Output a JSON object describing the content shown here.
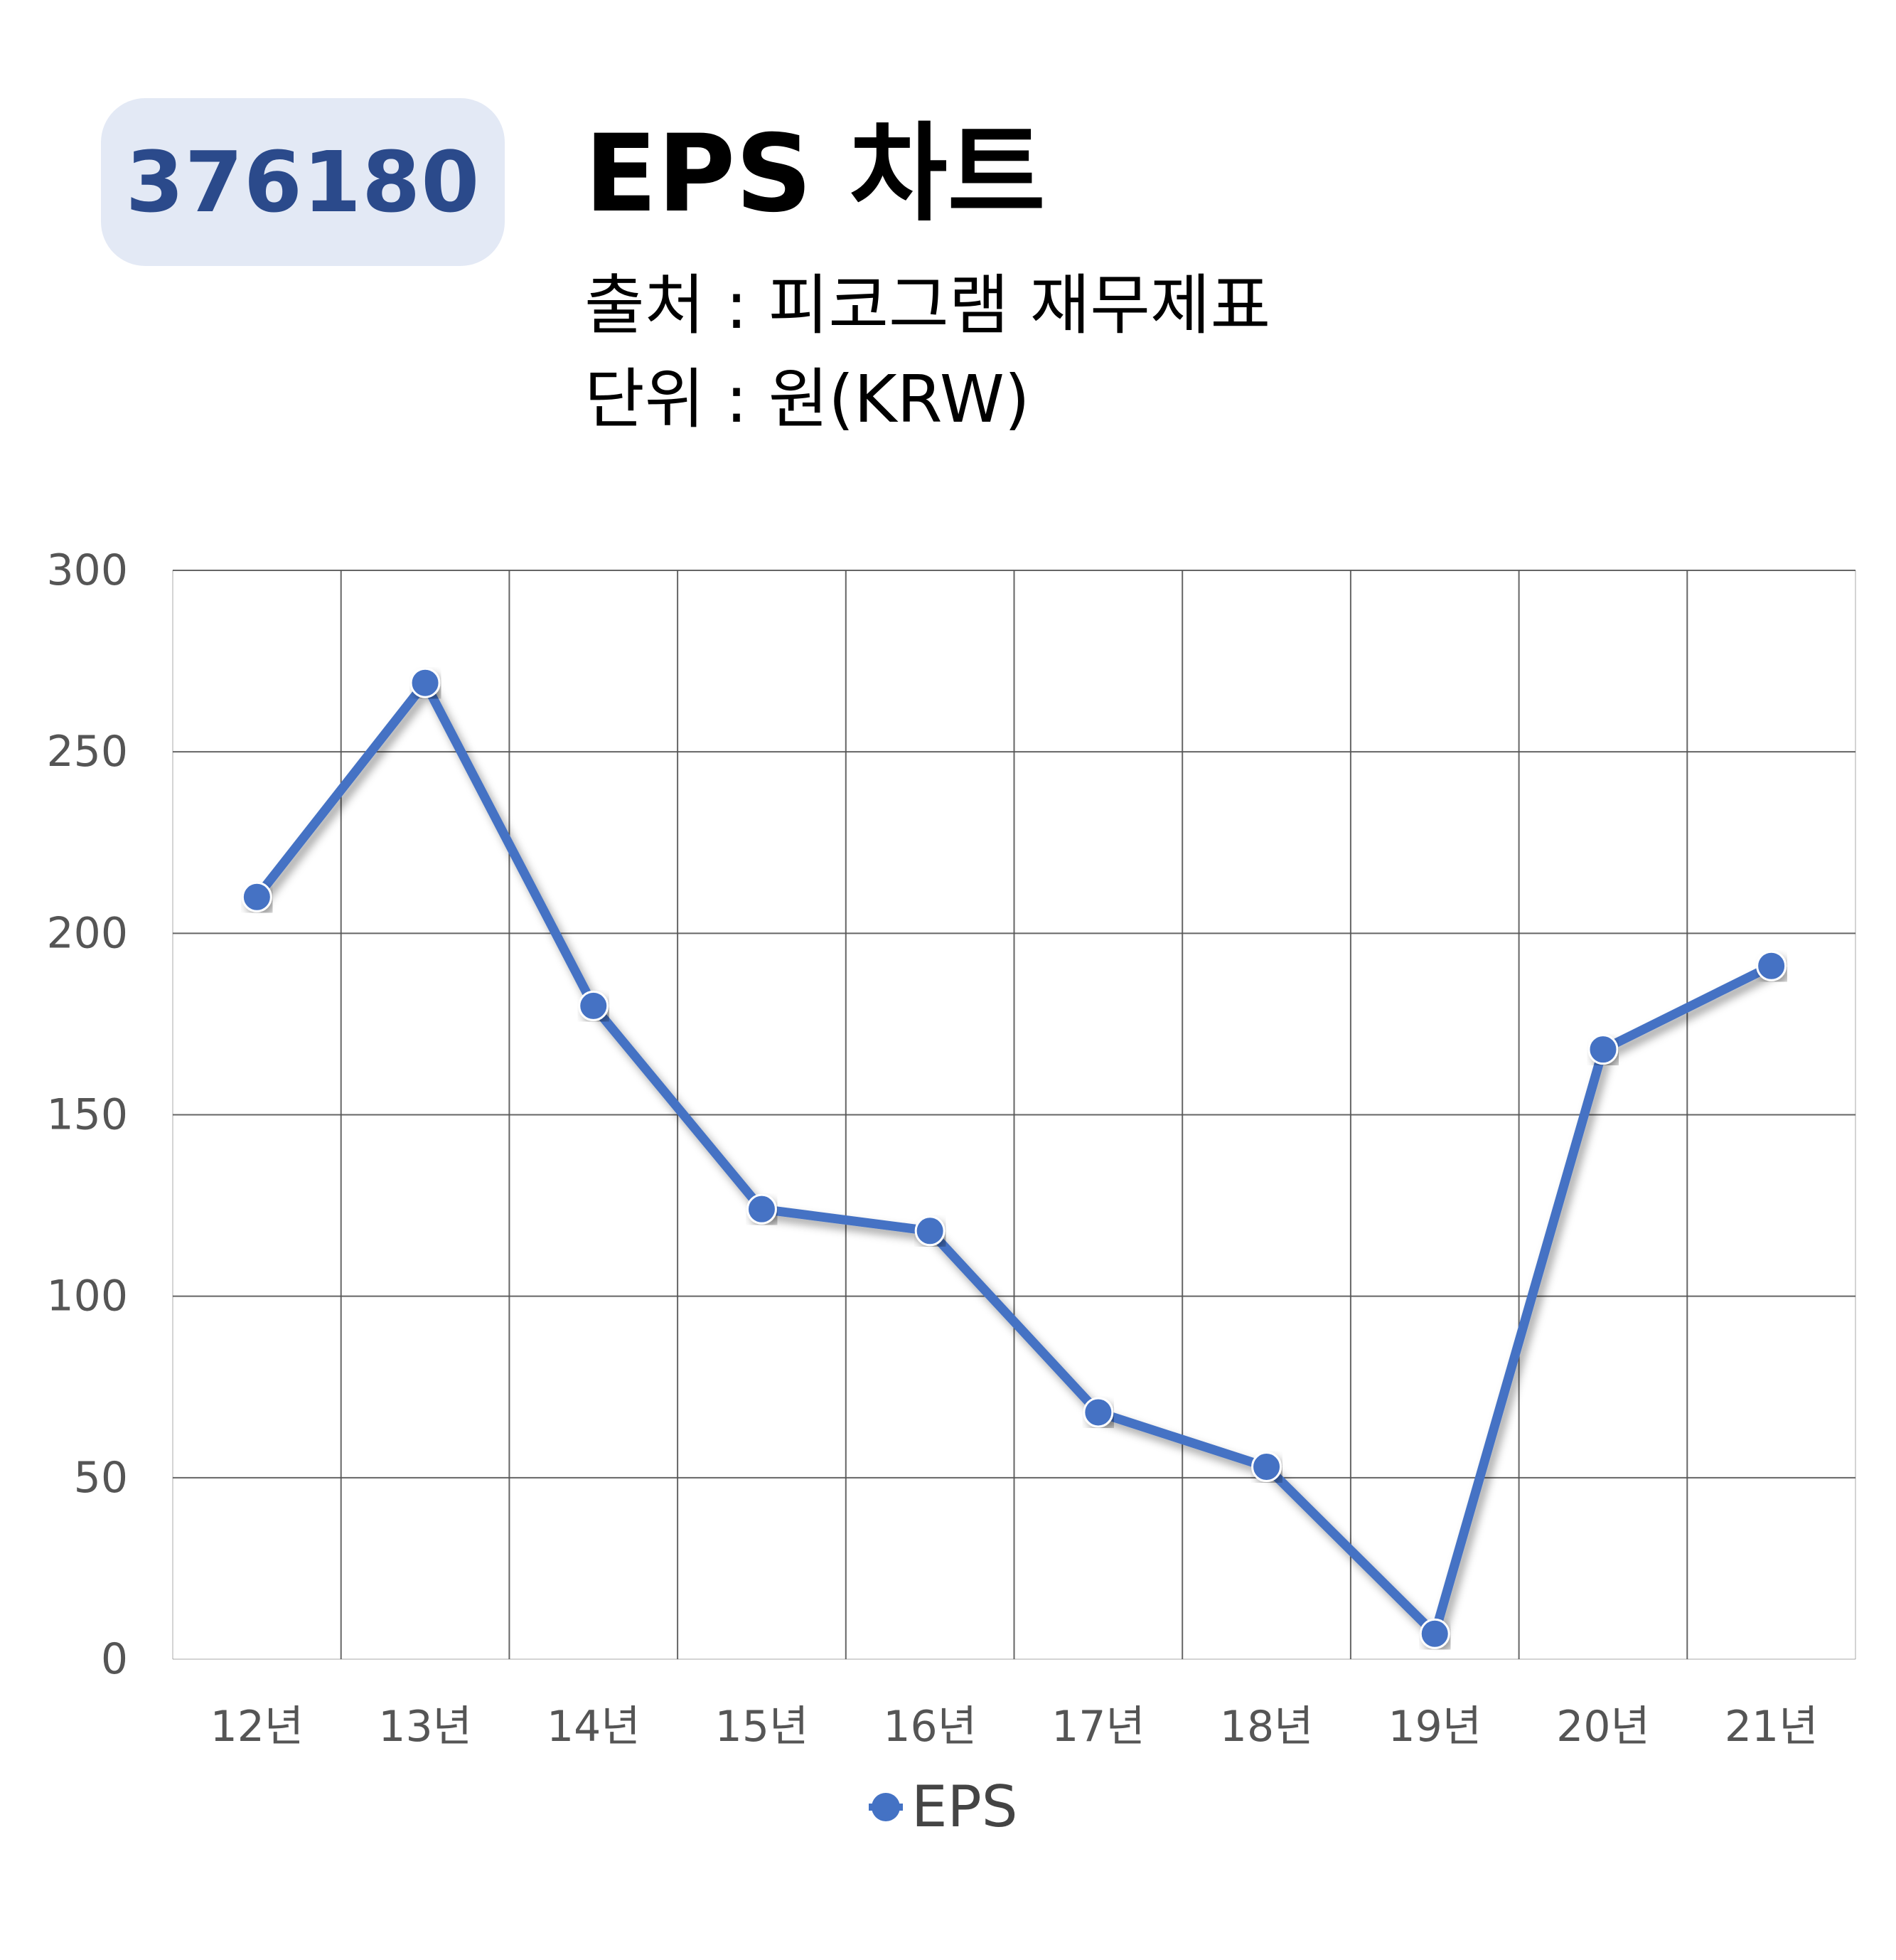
{
  "header": {
    "code": "376180",
    "title": "EPS 차트",
    "source": "출처 : 피코그램 재무제표",
    "unit": "단위 : 원(KRW)"
  },
  "colors": {
    "line": "#4472c4",
    "badge_bg": "#e3e9f5",
    "badge_text": "#2b4a8b",
    "grid": "#555555",
    "tick_text": "#555555"
  },
  "chart_data": {
    "type": "line",
    "categories": [
      "12년",
      "13년",
      "14년",
      "15년",
      "16년",
      "17년",
      "18년",
      "19년",
      "20년",
      "21년"
    ],
    "series": [
      {
        "name": "EPS",
        "values": [
          210,
          269,
          180,
          124,
          118,
          68,
          53,
          7,
          168,
          191
        ]
      }
    ],
    "ylim": [
      0,
      300
    ],
    "yticks": [
      0,
      50,
      100,
      150,
      200,
      250,
      300
    ],
    "grid": true,
    "legend": "bottom-center"
  }
}
